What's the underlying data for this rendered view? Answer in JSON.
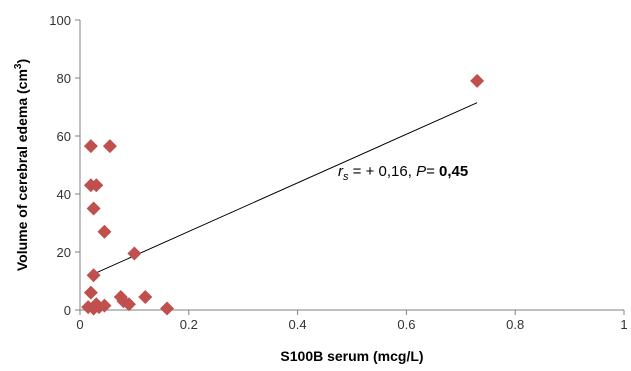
{
  "chart_data": {
    "type": "scatter",
    "xlabel": "S100B serum (mcg/L)",
    "ylabel_main": "Volume of cerebral edema (cm",
    "ylabel_sup": "3",
    "ylabel_end": ")",
    "xlim": [
      0,
      1
    ],
    "ylim": [
      0,
      100
    ],
    "x_ticks": [
      "0",
      "0.2",
      "0.4",
      "0.6",
      "0.8",
      "1"
    ],
    "y_ticks": [
      "0",
      "20",
      "40",
      "60",
      "80",
      "100"
    ],
    "grid": false,
    "legend": "none",
    "marker": "diamond",
    "marker_color": "#C0504D",
    "trendline_color": "#000000",
    "points": [
      {
        "x": 0.02,
        "y": 56.5
      },
      {
        "x": 0.055,
        "y": 56.5
      },
      {
        "x": 0.02,
        "y": 43
      },
      {
        "x": 0.03,
        "y": 43
      },
      {
        "x": 0.025,
        "y": 35
      },
      {
        "x": 0.045,
        "y": 27
      },
      {
        "x": 0.1,
        "y": 19.5
      },
      {
        "x": 0.025,
        "y": 12
      },
      {
        "x": 0.02,
        "y": 6
      },
      {
        "x": 0.075,
        "y": 4.5
      },
      {
        "x": 0.12,
        "y": 4.5
      },
      {
        "x": 0.08,
        "y": 3
      },
      {
        "x": 0.09,
        "y": 2
      },
      {
        "x": 0.03,
        "y": 2
      },
      {
        "x": 0.015,
        "y": 1
      },
      {
        "x": 0.025,
        "y": 0.5
      },
      {
        "x": 0.035,
        "y": 1
      },
      {
        "x": 0.045,
        "y": 1.5
      },
      {
        "x": 0.16,
        "y": 0.5
      },
      {
        "x": 0.73,
        "y": 79
      }
    ],
    "trendline": {
      "x": [
        0.02,
        0.73
      ],
      "y": [
        12,
        71.5
      ]
    },
    "annotation": {
      "r_symbol": "r",
      "r_sub": "s",
      "r_text": " = + 0,16, ",
      "p_symbol": "P",
      "p_eq": "= ",
      "p_value": "0,45"
    }
  }
}
